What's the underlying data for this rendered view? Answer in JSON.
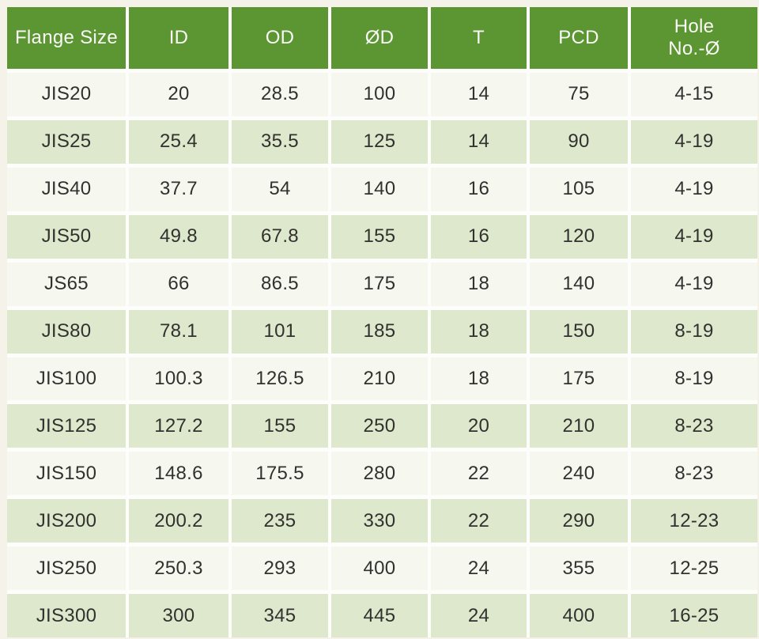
{
  "chart_data": {
    "type": "table",
    "columns": [
      {
        "key": "flange-size",
        "label": "Flange Size"
      },
      {
        "key": "id",
        "label": "ID"
      },
      {
        "key": "od",
        "label": "OD"
      },
      {
        "key": "d",
        "label": "ØD"
      },
      {
        "key": "t",
        "label": "T"
      },
      {
        "key": "pcd",
        "label": "PCD"
      },
      {
        "key": "hole-no-d",
        "label": "Hole\nNo.-Ø"
      }
    ],
    "rows": [
      [
        "JIS20",
        "20",
        "28.5",
        "100",
        "14",
        "75",
        "4-15"
      ],
      [
        "JIS25",
        "25.4",
        "35.5",
        "125",
        "14",
        "90",
        "4-19"
      ],
      [
        "JIS40",
        "37.7",
        "54",
        "140",
        "16",
        "105",
        "4-19"
      ],
      [
        "JIS50",
        "49.8",
        "67.8",
        "155",
        "16",
        "120",
        "4-19"
      ],
      [
        "JS65",
        "66",
        "86.5",
        "175",
        "18",
        "140",
        "4-19"
      ],
      [
        "JIS80",
        "78.1",
        "101",
        "185",
        "18",
        "150",
        "8-19"
      ],
      [
        "JIS100",
        "100.3",
        "126.5",
        "210",
        "18",
        "175",
        "8-19"
      ],
      [
        "JIS125",
        "127.2",
        "155",
        "250",
        "20",
        "210",
        "8-23"
      ],
      [
        "JIS150",
        "148.6",
        "175.5",
        "280",
        "22",
        "240",
        "8-23"
      ],
      [
        "JIS200",
        "200.2",
        "235",
        "330",
        "22",
        "290",
        "12-23"
      ],
      [
        "JIS250",
        "250.3",
        "293",
        "400",
        "24",
        "355",
        "12-25"
      ],
      [
        "JIS300",
        "300",
        "345",
        "445",
        "24",
        "400",
        "16-25"
      ]
    ],
    "layout": {
      "striped": "even rows light green, odd rows off-white",
      "header_position": "top",
      "grid": "white gaps between cells"
    }
  },
  "colors": {
    "header_bg": "#5c9633",
    "header_text": "#fafaf8",
    "row_green": "#dde8cc",
    "row_offwhite": "#f6f8f0",
    "page_bg": "#f5f2e9",
    "gap_bg": "#fdfdfb",
    "body_text": "#31312f"
  }
}
